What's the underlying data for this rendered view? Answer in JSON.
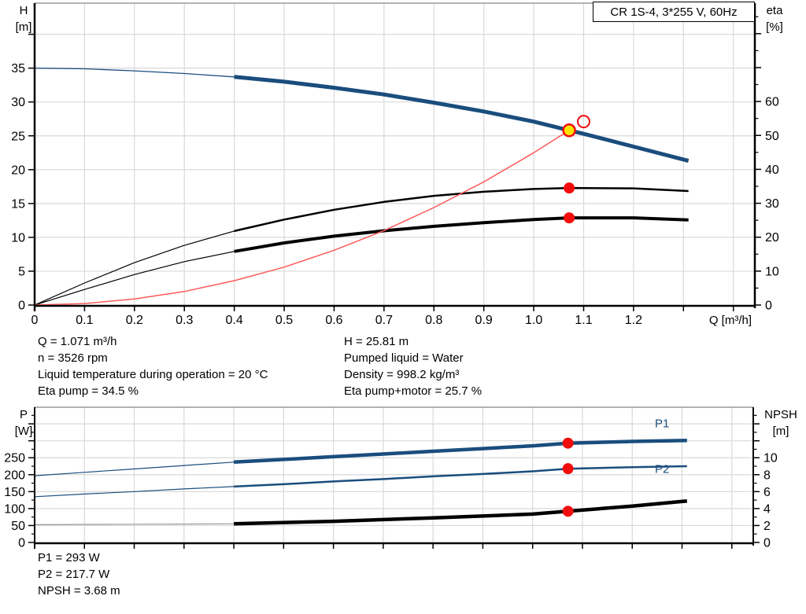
{
  "title_box": "CR 1S-4, 3*255 V, 60Hz",
  "colors": {
    "blue": "#1a4d7d",
    "red": "#f20d0d",
    "light_red": "#ff5a5a",
    "yellow": "#ffe400",
    "black": "#000000",
    "gray": "#999999",
    "grid": "#d9d9d9",
    "border": "#a8a8a8"
  },
  "info_top": {
    "left": [
      "Q = 1.071 m³/h",
      "n = 3526 rpm",
      "Liquid temperature during operation = 20 °C",
      "Eta pump = 34.5 %"
    ],
    "right": [
      "H = 25.81 m",
      "Pumped liquid = Water",
      "Density = 998.2 kg/m³",
      "Eta pump+motor = 25.7 %"
    ]
  },
  "info_bottom": [
    "P1 = 293 W",
    "P2 = 217.7 W",
    "NPSH = 3.68 m"
  ],
  "chart_data": [
    {
      "type": "line",
      "title": "CR 1S-4, 3*255 V, 60Hz",
      "x": {
        "title": "Q [m³/h]",
        "range": [
          0,
          1.443
        ],
        "ticks": [
          0,
          0.1,
          0.2,
          0.3,
          0.4,
          0.5,
          0.6,
          0.7,
          0.8,
          0.9,
          1.0,
          1.1,
          1.2,
          1.3,
          1.4
        ],
        "tick_labels": [
          "0",
          "0.1",
          "0.2",
          "0.3",
          "0.4",
          "0.5",
          "0.6",
          "0.7",
          "0.8",
          "0.9",
          "1.0",
          "1.1",
          "1.2",
          "",
          ""
        ],
        "grid": [
          0.1,
          0.2,
          0.3,
          0.4,
          0.5,
          0.6,
          0.7,
          0.8,
          0.9,
          1.0,
          1.1,
          1.2,
          1.3,
          1.4
        ]
      },
      "left": {
        "title": [
          "H",
          "[m]"
        ],
        "range": [
          0,
          44.6
        ],
        "ticks": [
          0,
          5,
          10,
          15,
          20,
          25,
          30,
          35,
          40
        ],
        "tick_labels": [
          "0",
          "5",
          "10",
          "15",
          "20",
          "25",
          "30",
          "35",
          ""
        ],
        "minor": [],
        "grid": [
          5,
          10,
          15,
          20,
          25,
          30,
          35,
          40
        ]
      },
      "right": {
        "title": [
          "eta",
          "[%]"
        ],
        "range": [
          0,
          89
        ],
        "ticks": [
          0,
          10,
          20,
          30,
          40,
          50,
          60,
          70,
          80
        ],
        "tick_labels": [
          "0",
          "10",
          "20",
          "30",
          "40",
          "50",
          "60",
          "",
          ""
        ],
        "minor": [
          5,
          15,
          25,
          35,
          45,
          55,
          65,
          75,
          85
        ]
      },
      "series": [
        {
          "name": "eta-pump-curve",
          "axis": "right",
          "color_key": "black",
          "thin_width": 1.2,
          "thick_width": 2.5,
          "thick_from": 0.4,
          "points": [
            [
              0,
              0
            ],
            [
              0.1,
              6.5
            ],
            [
              0.2,
              12.5
            ],
            [
              0.3,
              17.6
            ],
            [
              0.4,
              21.8
            ],
            [
              0.5,
              25.2
            ],
            [
              0.6,
              28.1
            ],
            [
              0.7,
              30.4
            ],
            [
              0.8,
              32.2
            ],
            [
              0.9,
              33.4
            ],
            [
              1.0,
              34.2
            ],
            [
              1.071,
              34.5
            ],
            [
              1.2,
              34.4
            ],
            [
              1.31,
              33.6
            ]
          ]
        },
        {
          "name": "eta-pump-motor-curve",
          "axis": "right",
          "color_key": "black",
          "thin_width": 1.2,
          "thick_width": 4,
          "thick_from": 0.4,
          "points": [
            [
              0,
              0
            ],
            [
              0.1,
              4.6
            ],
            [
              0.2,
              9.0
            ],
            [
              0.3,
              12.8
            ],
            [
              0.4,
              15.8
            ],
            [
              0.5,
              18.3
            ],
            [
              0.6,
              20.3
            ],
            [
              0.7,
              21.9
            ],
            [
              0.8,
              23.2
            ],
            [
              0.9,
              24.3
            ],
            [
              1.0,
              25.2
            ],
            [
              1.071,
              25.7
            ],
            [
              1.2,
              25.7
            ],
            [
              1.31,
              25.1
            ]
          ]
        },
        {
          "name": "system-curve",
          "axis": "left",
          "color_key": "light_red",
          "thin_width": 1.5,
          "thick_width": 1.5,
          "thick_from": 2,
          "points": [
            [
              0,
              0
            ],
            [
              0.1,
              0.22
            ],
            [
              0.2,
              0.9
            ],
            [
              0.3,
              2.0
            ],
            [
              0.4,
              3.6
            ],
            [
              0.5,
              5.6
            ],
            [
              0.6,
              8.1
            ],
            [
              0.7,
              11.0
            ],
            [
              0.8,
              14.4
            ],
            [
              0.9,
              18.2
            ],
            [
              1.0,
              22.5
            ],
            [
              1.071,
              25.81
            ]
          ]
        },
        {
          "name": "head-curve",
          "axis": "left",
          "color_key": "blue",
          "thin_width": 1.3,
          "thick_width": 5,
          "thick_from": 0.4,
          "points": [
            [
              0,
              35
            ],
            [
              0.1,
              34.9
            ],
            [
              0.2,
              34.6
            ],
            [
              0.3,
              34.2
            ],
            [
              0.4,
              33.7
            ],
            [
              0.5,
              33.0
            ],
            [
              0.6,
              32.1
            ],
            [
              0.7,
              31.1
            ],
            [
              0.8,
              29.9
            ],
            [
              0.9,
              28.6
            ],
            [
              1.0,
              27.1
            ],
            [
              1.071,
              25.81
            ],
            [
              1.1,
              25.3
            ],
            [
              1.2,
              23.4
            ],
            [
              1.31,
              21.3
            ]
          ]
        }
      ],
      "markers": [
        {
          "name": "eta-pump-duty-dot",
          "q": 1.071,
          "v": 34.5,
          "axis": "right",
          "style": "dot-red"
        },
        {
          "name": "eta-pump-motor-duty-dot",
          "q": 1.071,
          "v": 25.7,
          "axis": "right",
          "style": "dot-red"
        },
        {
          "name": "requested-duty-point",
          "q": 1.1,
          "v": 27.1,
          "axis": "left",
          "style": "open-red"
        },
        {
          "name": "duty-point",
          "q": 1.071,
          "v": 25.81,
          "axis": "left",
          "style": "duty-yellow"
        }
      ],
      "annotations": []
    },
    {
      "type": "line",
      "title": "",
      "x": {
        "title": "",
        "range": [
          0,
          1.443
        ],
        "ticks": [
          0,
          0.1,
          0.2,
          0.3,
          0.4,
          0.5,
          0.6,
          0.7,
          0.8,
          0.9,
          1.0,
          1.1,
          1.2,
          1.3,
          1.4
        ],
        "tick_labels": [
          "",
          "",
          "",
          "",
          "",
          "",
          "",
          "",
          "",
          "",
          "",
          "",
          "",
          "",
          ""
        ],
        "grid": [
          0.1,
          0.2,
          0.3,
          0.4,
          0.5,
          0.6,
          0.7,
          0.8,
          0.9,
          1.0,
          1.1,
          1.2,
          1.3,
          1.4
        ]
      },
      "left": {
        "title": [
          "P",
          "[W]"
        ],
        "range": [
          0,
          399
        ],
        "ticks": [
          0,
          50,
          100,
          150,
          200,
          250,
          300,
          350
        ],
        "tick_labels": [
          "0",
          "50",
          "100",
          "150",
          "200",
          "250",
          "",
          ""
        ],
        "minor": [
          25,
          75,
          125,
          175,
          225,
          275,
          325,
          375
        ],
        "grid": [
          50,
          100,
          150,
          200,
          250,
          300,
          350
        ]
      },
      "right": {
        "title": [
          "NPSH",
          "[m]"
        ],
        "range": [
          0,
          15.96
        ],
        "ticks": [
          0,
          2,
          4,
          6,
          8,
          10,
          12,
          14
        ],
        "tick_labels": [
          "0",
          "2",
          "4",
          "6",
          "8",
          "10",
          "",
          ""
        ],
        "minor": [
          1,
          3,
          5,
          7,
          9,
          11,
          13,
          15
        ]
      },
      "series": [
        {
          "name": "p1-curve",
          "axis": "left",
          "color_key": "blue",
          "thin_width": 1.2,
          "thick_width": 4.5,
          "thick_from": 0.4,
          "points": [
            [
              0,
              197
            ],
            [
              0.1,
              207
            ],
            [
              0.2,
              217
            ],
            [
              0.3,
              227
            ],
            [
              0.4,
              237
            ],
            [
              0.5,
              245
            ],
            [
              0.6,
              253
            ],
            [
              0.7,
              261
            ],
            [
              0.8,
              269
            ],
            [
              0.9,
              277
            ],
            [
              1.0,
              285
            ],
            [
              1.071,
              293
            ],
            [
              1.2,
              298
            ],
            [
              1.31,
              301
            ]
          ]
        },
        {
          "name": "p2-curve",
          "axis": "left",
          "color_key": "blue",
          "thin_width": 1.2,
          "thick_width": 2.5,
          "thick_from": 0.4,
          "points": [
            [
              0,
              135
            ],
            [
              0.1,
              143
            ],
            [
              0.2,
              150
            ],
            [
              0.3,
              158
            ],
            [
              0.4,
              165
            ],
            [
              0.5,
              172
            ],
            [
              0.6,
              180
            ],
            [
              0.7,
              187
            ],
            [
              0.8,
              195
            ],
            [
              0.9,
              202
            ],
            [
              1.0,
              210
            ],
            [
              1.071,
              217.7
            ],
            [
              1.2,
              222
            ],
            [
              1.31,
              225
            ]
          ]
        },
        {
          "name": "npsh-curve",
          "axis": "right",
          "color_key": "black",
          "thin_color_key": "gray",
          "thin_width": 1.2,
          "thick_width": 4.5,
          "thick_from": 0.4,
          "points": [
            [
              0,
              2.1
            ],
            [
              0.2,
              2.15
            ],
            [
              0.4,
              2.2
            ],
            [
              0.6,
              2.5
            ],
            [
              0.8,
              2.9
            ],
            [
              1.0,
              3.35
            ],
            [
              1.071,
              3.68
            ],
            [
              1.2,
              4.3
            ],
            [
              1.31,
              4.9
            ]
          ]
        }
      ],
      "markers": [
        {
          "name": "p1-duty-dot",
          "q": 1.071,
          "v": 293,
          "axis": "left",
          "style": "dot-red"
        },
        {
          "name": "p2-duty-dot",
          "q": 1.071,
          "v": 217.7,
          "axis": "left",
          "style": "dot-red"
        },
        {
          "name": "npsh-duty-dot",
          "q": 1.071,
          "v": 3.68,
          "axis": "right",
          "style": "dot-red"
        }
      ],
      "annotations": [
        {
          "text": "P1",
          "q": 1.26,
          "v": 340,
          "axis": "left",
          "color_key": "blue"
        },
        {
          "text": "P2",
          "q": 1.26,
          "v": 205,
          "axis": "left",
          "color_key": "blue"
        }
      ]
    }
  ]
}
